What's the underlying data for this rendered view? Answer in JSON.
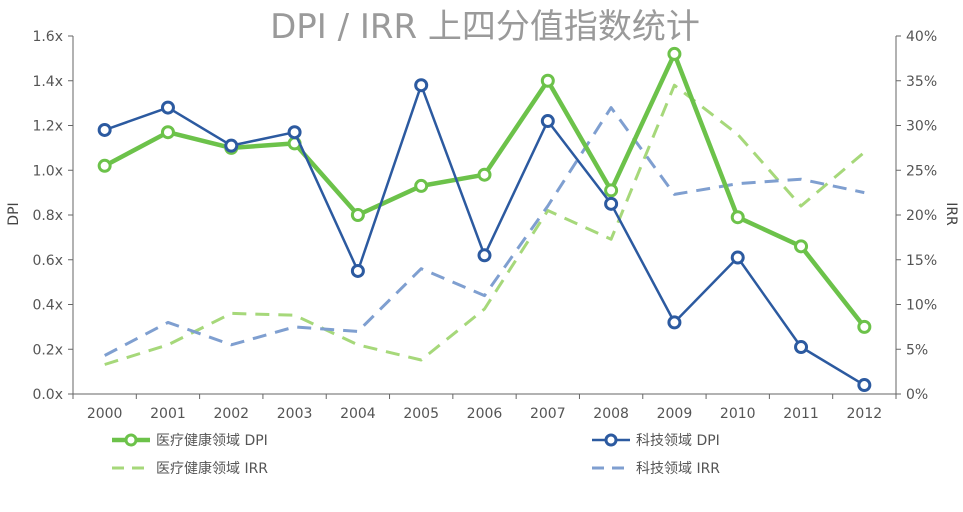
{
  "chart_data": {
    "type": "line",
    "title": "DPI / IRR 上四分值指数统计",
    "xlabel": "",
    "ylabel_left": "DPI",
    "ylabel_right": "IRR",
    "categories": [
      "2000",
      "2001",
      "2002",
      "2003",
      "2004",
      "2005",
      "2006",
      "2007",
      "2008",
      "2009",
      "2010",
      "2011",
      "2012"
    ],
    "y_left": {
      "min": 0,
      "max": 1.6,
      "ticks": [
        "0.0x",
        "0.2x",
        "0.4x",
        "0.6x",
        "0.8x",
        "1.0x",
        "1.2x",
        "1.4x",
        "1.6x"
      ],
      "tick_values": [
        0,
        0.2,
        0.4,
        0.6,
        0.8,
        1.0,
        1.2,
        1.4,
        1.6
      ]
    },
    "y_right": {
      "min": 0,
      "max": 40,
      "ticks": [
        "0%",
        "5%",
        "10%",
        "15%",
        "20%",
        "25%",
        "30%",
        "35%",
        "40%"
      ],
      "tick_values": [
        0,
        5,
        10,
        15,
        20,
        25,
        30,
        35,
        40
      ]
    },
    "grid": false,
    "legend_placement": "bottom",
    "series": [
      {
        "name": "医疗健康领域 DPI",
        "axis": "left",
        "style": "solid-marker",
        "color": "#6cc24a",
        "values": [
          1.02,
          1.17,
          1.1,
          1.12,
          0.8,
          0.93,
          0.98,
          1.4,
          0.91,
          1.52,
          0.79,
          0.66,
          0.3
        ]
      },
      {
        "name": "科技领域 DPI",
        "axis": "left",
        "style": "solid-marker",
        "color": "#2c5aa0",
        "values": [
          1.18,
          1.28,
          1.11,
          1.17,
          0.55,
          1.38,
          0.62,
          1.22,
          0.85,
          0.32,
          0.61,
          0.21,
          0.04
        ]
      },
      {
        "name": "医疗健康领域 IRR",
        "axis": "right",
        "style": "dashed",
        "color": "#a6d87a",
        "values": [
          3.3,
          5.5,
          9.0,
          8.8,
          5.5,
          3.8,
          9.5,
          20.5,
          17.3,
          34.5,
          29.0,
          21.0,
          27.0
        ]
      },
      {
        "name": "科技领域 IRR",
        "axis": "right",
        "style": "dashed",
        "color": "#7f9fd0",
        "values": [
          4.3,
          8.0,
          5.5,
          7.5,
          7.0,
          14.0,
          11.0,
          21.0,
          32.0,
          22.3,
          23.5,
          24.0,
          22.5
        ]
      }
    ]
  }
}
